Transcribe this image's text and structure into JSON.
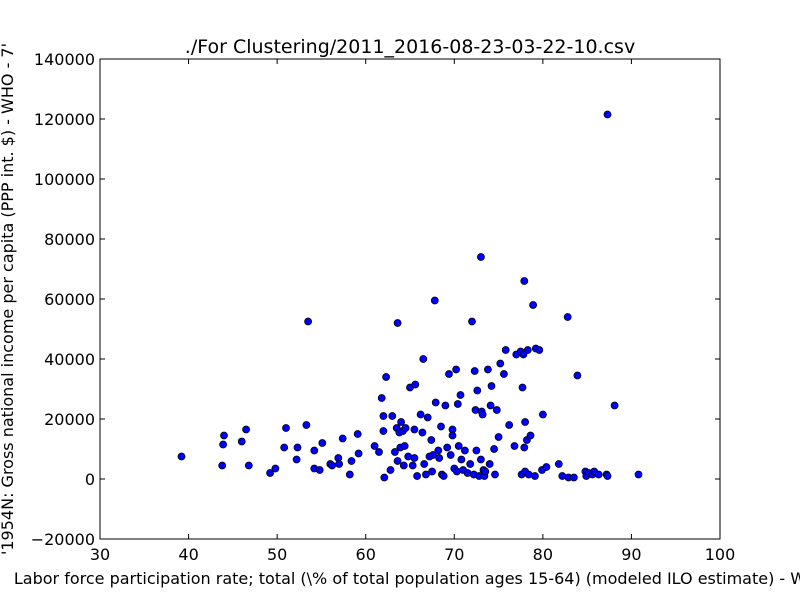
{
  "chart_data": {
    "type": "scatter",
    "title": "./For Clustering/2011_2016-08-23-03-22-10.csv",
    "xlabel": "Labor force participation rate; total (\\% of total population ages 15-64)  (modeled ILO estimate) - W",
    "ylabel": "'1954N: Gross national income per capita (PPP int. $) - WHO - 7'",
    "xlim": [
      30,
      100
    ],
    "ylim": [
      -20000,
      140000
    ],
    "x_ticks": [
      30,
      40,
      50,
      60,
      70,
      80,
      90,
      100
    ],
    "y_ticks": [
      -20000,
      0,
      20000,
      40000,
      60000,
      80000,
      100000,
      120000,
      140000
    ],
    "x_tick_labels": [
      "30",
      "40",
      "50",
      "60",
      "70",
      "80",
      "90",
      "100"
    ],
    "y_tick_labels": [
      "−20000",
      "0",
      "20000",
      "40000",
      "60000",
      "80000",
      "100000",
      "120000",
      "140000"
    ],
    "grid": false,
    "marker_color": "#0000ff",
    "marker_edge_color": "#000000",
    "points": [
      [
        39.2,
        7500
      ],
      [
        43.8,
        4500
      ],
      [
        43.9,
        11500
      ],
      [
        44.0,
        14500
      ],
      [
        46.0,
        12500
      ],
      [
        46.5,
        16500
      ],
      [
        46.8,
        4500
      ],
      [
        49.2,
        2000
      ],
      [
        49.8,
        3500
      ],
      [
        50.8,
        10500
      ],
      [
        51.0,
        17000
      ],
      [
        52.2,
        6500
      ],
      [
        52.3,
        10500
      ],
      [
        53.3,
        18000
      ],
      [
        53.5,
        52500
      ],
      [
        54.2,
        9500
      ],
      [
        54.2,
        3500
      ],
      [
        54.8,
        3000
      ],
      [
        55.1,
        12000
      ],
      [
        56.0,
        5000
      ],
      [
        56.2,
        4500
      ],
      [
        56.9,
        7000
      ],
      [
        57.0,
        5000
      ],
      [
        57.4,
        13500
      ],
      [
        58.2,
        1500
      ],
      [
        58.4,
        6000
      ],
      [
        59.1,
        15000
      ],
      [
        59.2,
        8500
      ],
      [
        61.0,
        11000
      ],
      [
        61.5,
        9000
      ],
      [
        61.8,
        27000
      ],
      [
        62.0,
        21000
      ],
      [
        62.0,
        16000
      ],
      [
        62.1,
        500
      ],
      [
        62.3,
        34000
      ],
      [
        62.8,
        3000
      ],
      [
        63.0,
        21000
      ],
      [
        63.3,
        9000
      ],
      [
        63.5,
        17000
      ],
      [
        63.6,
        52000
      ],
      [
        63.6,
        6000
      ],
      [
        63.8,
        15500
      ],
      [
        63.9,
        10500
      ],
      [
        64.0,
        19000
      ],
      [
        64.2,
        16000
      ],
      [
        64.3,
        4500
      ],
      [
        64.4,
        11000
      ],
      [
        64.5,
        17000
      ],
      [
        64.8,
        7500
      ],
      [
        65.0,
        30500
      ],
      [
        65.3,
        4500
      ],
      [
        65.5,
        7000
      ],
      [
        65.5,
        16500
      ],
      [
        65.6,
        31500
      ],
      [
        65.8,
        1000
      ],
      [
        66.2,
        21500
      ],
      [
        66.4,
        15500
      ],
      [
        66.5,
        40000
      ],
      [
        66.6,
        5000
      ],
      [
        66.8,
        1500
      ],
      [
        67.0,
        20500
      ],
      [
        67.2,
        7500
      ],
      [
        67.4,
        13000
      ],
      [
        67.5,
        2500
      ],
      [
        67.6,
        8000
      ],
      [
        67.8,
        59500
      ],
      [
        67.9,
        25500
      ],
      [
        68.2,
        9500
      ],
      [
        68.3,
        7000
      ],
      [
        68.5,
        17500
      ],
      [
        68.6,
        1500
      ],
      [
        68.8,
        1000
      ],
      [
        69.0,
        24500
      ],
      [
        69.2,
        10500
      ],
      [
        69.4,
        35000
      ],
      [
        69.6,
        8000
      ],
      [
        69.8,
        16500
      ],
      [
        69.8,
        14500
      ],
      [
        70.0,
        3500
      ],
      [
        70.2,
        36500
      ],
      [
        70.3,
        2500
      ],
      [
        70.4,
        25000
      ],
      [
        70.5,
        11000
      ],
      [
        70.7,
        28000
      ],
      [
        70.8,
        6500
      ],
      [
        71.0,
        3000
      ],
      [
        71.2,
        9500
      ],
      [
        71.5,
        2000
      ],
      [
        71.8,
        5000
      ],
      [
        72.0,
        52500
      ],
      [
        72.2,
        1500
      ],
      [
        72.3,
        36000
      ],
      [
        72.4,
        23000
      ],
      [
        72.5,
        9500
      ],
      [
        72.6,
        29500
      ],
      [
        72.8,
        1000
      ],
      [
        73.0,
        74000
      ],
      [
        73.0,
        6500
      ],
      [
        73.1,
        22500
      ],
      [
        73.2,
        21500
      ],
      [
        73.3,
        3000
      ],
      [
        73.4,
        1000
      ],
      [
        73.5,
        2500
      ],
      [
        73.8,
        36500
      ],
      [
        74.0,
        5000
      ],
      [
        74.1,
        24500
      ],
      [
        74.2,
        31000
      ],
      [
        74.5,
        10000
      ],
      [
        74.6,
        1500
      ],
      [
        74.8,
        23000
      ],
      [
        75.0,
        14000
      ],
      [
        75.2,
        38500
      ],
      [
        75.6,
        35000
      ],
      [
        75.8,
        43000
      ],
      [
        76.2,
        18000
      ],
      [
        76.8,
        11000
      ],
      [
        77.0,
        41500
      ],
      [
        77.5,
        42500
      ],
      [
        77.6,
        1500
      ],
      [
        77.7,
        30500
      ],
      [
        77.8,
        41500
      ],
      [
        77.9,
        66000
      ],
      [
        77.9,
        10500
      ],
      [
        78.0,
        19000
      ],
      [
        78.0,
        2500
      ],
      [
        78.2,
        13000
      ],
      [
        78.3,
        43000
      ],
      [
        78.4,
        1500
      ],
      [
        78.6,
        14500
      ],
      [
        78.9,
        58000
      ],
      [
        79.1,
        1000
      ],
      [
        79.2,
        43500
      ],
      [
        79.6,
        43000
      ],
      [
        79.9,
        3000
      ],
      [
        80.0,
        21500
      ],
      [
        80.4,
        4000
      ],
      [
        81.8,
        5000
      ],
      [
        82.2,
        1000
      ],
      [
        82.8,
        54000
      ],
      [
        82.9,
        500
      ],
      [
        83.5,
        500
      ],
      [
        83.9,
        34500
      ],
      [
        84.8,
        2500
      ],
      [
        84.9,
        1000
      ],
      [
        85.2,
        2000
      ],
      [
        85.6,
        1500
      ],
      [
        85.8,
        2500
      ],
      [
        86.3,
        1500
      ],
      [
        87.2,
        1500
      ],
      [
        87.3,
        121500
      ],
      [
        87.3,
        1000
      ],
      [
        88.1,
        24500
      ],
      [
        90.8,
        1500
      ]
    ]
  }
}
